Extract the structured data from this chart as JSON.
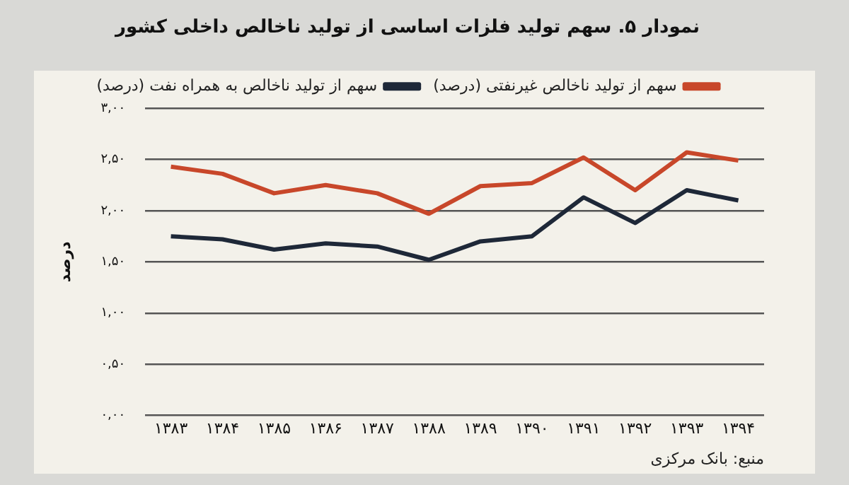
{
  "chart_data": {
    "type": "line",
    "title": "نمودار ۵. سهم تولید فلزات اساسی از تولید ناخالص داخلی کشور",
    "ylabel": "درصد",
    "categories": [
      "۱۳۸۳",
      "۱۳۸۴",
      "۱۳۸۵",
      "۱۳۸۶",
      "۱۳۸۷",
      "۱۳۸۸",
      "۱۳۸۹",
      "۱۳۹۰",
      "۱۳۹۱",
      "۱۳۹۲",
      "۱۳۹۳",
      "۱۳۹۴"
    ],
    "series": [
      {
        "name": "سهم از تولید ناخالص غیرنفتی (درصد)",
        "color": "#c8472a",
        "values": [
          2.43,
          2.36,
          2.17,
          2.25,
          2.17,
          1.97,
          2.24,
          2.27,
          2.52,
          2.2,
          2.57,
          2.49
        ]
      },
      {
        "name": "سهم از تولید ناخالص به همراه نفت (درصد)",
        "color": "#1e2838",
        "values": [
          1.75,
          1.72,
          1.62,
          1.68,
          1.65,
          1.52,
          1.7,
          1.75,
          2.13,
          1.88,
          2.2,
          2.1
        ]
      }
    ],
    "ylim": [
      0,
      3
    ],
    "yticks": [
      {
        "value": 0,
        "label": "۰,۰۰"
      },
      {
        "value": 0.5,
        "label": "۰,۵۰"
      },
      {
        "value": 1,
        "label": "۱,۰۰"
      },
      {
        "value": 1.5,
        "label": "۱,۵۰"
      },
      {
        "value": 2,
        "label": "۲,۰۰"
      },
      {
        "value": 2.5,
        "label": "۲,۵۰"
      },
      {
        "value": 3,
        "label": "۳,۰۰"
      }
    ],
    "grid": "y",
    "legend": "top",
    "marker": "none",
    "line_style": "solid",
    "annotations": [
      "منبع: بانک مرکزی"
    ]
  }
}
